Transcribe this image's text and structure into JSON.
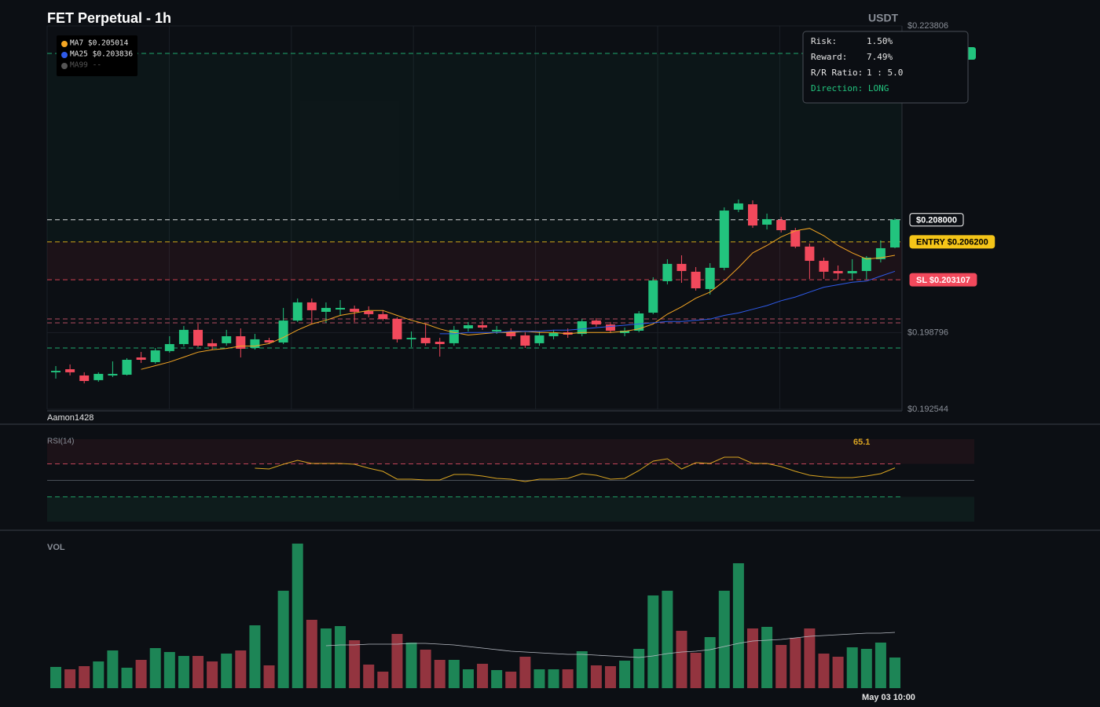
{
  "title": "FET Perpetual - 1h",
  "currency": "USDT",
  "watermark": "Aamon1428",
  "info": {
    "rows": [
      {
        "label": "Risk:",
        "value": "1.50%"
      },
      {
        "label": "Reward:",
        "value": "7.49%"
      },
      {
        "label": "R/R Ratio:",
        "value": "1 : 5.0"
      }
    ],
    "direction": "Direction: LONG"
  },
  "chart_data": [
    {
      "type": "candlestick",
      "up_color": "#22c47e",
      "down_color": "#f2495c",
      "categories": [
        null,
        null,
        null,
        null,
        null,
        null,
        null,
        null,
        null,
        null,
        null,
        null,
        null,
        null,
        null,
        null,
        null,
        null,
        null,
        null,
        null,
        null,
        null,
        null,
        null,
        null,
        null,
        null,
        null,
        null,
        null,
        null,
        null,
        null,
        null,
        null,
        null,
        null,
        null,
        null,
        null,
        null,
        null,
        null,
        null,
        null,
        null,
        null,
        null,
        null,
        null,
        null,
        null,
        null,
        null,
        null,
        null,
        null,
        null,
        "May 03 10:00"
      ],
      "open": [
        0.19556,
        0.19581,
        0.1953,
        0.19492,
        0.1953,
        0.19536,
        0.19677,
        0.19639,
        0.19729,
        0.19786,
        0.19902,
        0.19793,
        0.19793,
        0.1985,
        0.19754,
        0.19818,
        0.19799,
        0.19978,
        0.20126,
        0.20049,
        0.20068,
        0.20074,
        0.20055,
        0.2003,
        0.19991,
        0.19825,
        0.19837,
        0.19805,
        0.19793,
        0.19914,
        0.1994,
        0.19889,
        0.19889,
        0.19857,
        0.19793,
        0.1985,
        0.19882,
        0.19869,
        0.19978,
        0.19946,
        0.19876,
        0.19895,
        0.20042,
        0.20299,
        0.2044,
        0.20376,
        0.20235,
        0.20408,
        0.20882,
        0.20926,
        0.2076,
        0.20798,
        0.20715,
        0.20581,
        0.20465,
        0.20382,
        0.20363,
        0.20382,
        0.20478,
        0.20574
      ],
      "high": [
        0.19607,
        0.1962,
        0.19556,
        0.19556,
        0.19645,
        0.19671,
        0.19722,
        0.19754,
        0.1985,
        0.19934,
        0.19953,
        0.19825,
        0.19902,
        0.19914,
        0.19869,
        0.19837,
        0.20081,
        0.20158,
        0.20158,
        0.20126,
        0.20145,
        0.201,
        0.20094,
        0.20062,
        0.20004,
        0.19889,
        0.19953,
        0.19837,
        0.19934,
        0.19966,
        0.19978,
        0.19934,
        0.19914,
        0.19882,
        0.19889,
        0.19902,
        0.19914,
        0.19991,
        0.19998,
        0.19966,
        0.19921,
        0.20055,
        0.20331,
        0.20478,
        0.2051,
        0.20414,
        0.20446,
        0.20901,
        0.20965,
        0.20958,
        0.2085,
        0.20824,
        0.20734,
        0.20606,
        0.20491,
        0.20427,
        0.20478,
        0.20504,
        0.20632,
        0.20811
      ],
      "low": [
        0.19504,
        0.1953,
        0.19466,
        0.19479,
        0.19517,
        0.1953,
        0.19632,
        0.19626,
        0.19716,
        0.19767,
        0.19761,
        0.19741,
        0.19773,
        0.19677,
        0.19741,
        0.19786,
        0.19786,
        0.19966,
        0.19946,
        0.19959,
        0.20017,
        0.19966,
        0.20004,
        0.19978,
        0.19799,
        0.19761,
        0.19773,
        0.19684,
        0.19773,
        0.19889,
        0.19902,
        0.19869,
        0.19825,
        0.19754,
        0.19773,
        0.19825,
        0.19837,
        0.1985,
        0.19927,
        0.19876,
        0.1985,
        0.19882,
        0.2003,
        0.20273,
        0.20286,
        0.20222,
        0.2019,
        0.20388,
        0.20862,
        0.20734,
        0.20721,
        0.20696,
        0.20568,
        0.20318,
        0.20318,
        0.20312,
        0.20312,
        0.20312,
        0.20452,
        0.20568
      ],
      "close": [
        0.19568,
        0.19556,
        0.19485,
        0.19543,
        0.19543,
        0.19658,
        0.19658,
        0.19735,
        0.19786,
        0.19902,
        0.19773,
        0.19767,
        0.1985,
        0.19748,
        0.19825,
        0.19799,
        0.19978,
        0.20126,
        0.20062,
        0.20081,
        0.20081,
        0.20049,
        0.2003,
        0.19991,
        0.19825,
        0.19837,
        0.19793,
        0.19786,
        0.19902,
        0.1994,
        0.19921,
        0.19902,
        0.1985,
        0.19773,
        0.19857,
        0.19876,
        0.19863,
        0.19972,
        0.19946,
        0.19895,
        0.19895,
        0.20036,
        0.20305,
        0.2044,
        0.20382,
        0.20241,
        0.20408,
        0.20875,
        0.20933,
        0.20753,
        0.20805,
        0.20715,
        0.20581,
        0.20465,
        0.20376,
        0.20363,
        0.20382,
        0.20491,
        0.20568,
        0.208
      ],
      "series": [
        {
          "name": "MA7 $0.205014",
          "color": "#f5a623",
          "values": [
            null,
            null,
            null,
            null,
            null,
            null,
            0.1958,
            0.1961,
            0.1964,
            0.1968,
            0.1972,
            0.1974,
            0.1975,
            0.1977,
            0.1977,
            0.1979,
            0.1984,
            0.199,
            0.1995,
            0.1998,
            0.2002,
            0.2004,
            0.2006,
            0.2006,
            0.2002,
            0.1998,
            0.1995,
            0.1991,
            0.1988,
            0.1986,
            0.1987,
            0.1988,
            0.1988,
            0.1989,
            0.1988,
            0.1988,
            0.1987,
            0.1988,
            0.1988,
            0.1988,
            0.1989,
            0.1991,
            0.1995,
            0.2003,
            0.2009,
            0.2016,
            0.2021,
            0.203,
            0.2041,
            0.2053,
            0.2059,
            0.2066,
            0.2071,
            0.2073,
            0.2067,
            0.2059,
            0.2053,
            0.2048,
            0.2049,
            0.2051
          ]
        },
        {
          "name": "MA25 $0.203836",
          "color": "#2f5bea",
          "values": [
            null,
            null,
            null,
            null,
            null,
            null,
            null,
            null,
            null,
            null,
            null,
            null,
            null,
            null,
            null,
            null,
            null,
            null,
            null,
            null,
            null,
            null,
            null,
            null,
            null,
            null,
            null,
            0.1987,
            0.1987,
            0.1988,
            0.1988,
            0.1988,
            0.1989,
            0.1989,
            0.1989,
            0.199,
            0.199,
            0.1991,
            0.1992,
            0.1993,
            0.1994,
            0.1995,
            0.1996,
            0.1997,
            0.1997,
            0.1998,
            0.1999,
            0.2002,
            0.2004,
            0.2007,
            0.201,
            0.2014,
            0.2017,
            0.2021,
            0.2025,
            0.2027,
            0.2029,
            0.203,
            0.2034,
            0.2038
          ]
        },
        {
          "name": "MA99 --",
          "color": "#555555",
          "values": [
            null,
            null,
            null,
            null,
            null,
            null,
            null,
            null,
            null,
            null,
            null,
            null,
            null,
            null,
            null,
            null,
            null,
            null,
            null,
            null,
            null,
            null,
            null,
            null,
            null,
            null,
            null,
            null,
            null,
            null,
            null,
            null,
            null,
            null,
            null,
            null,
            null,
            null,
            null,
            null,
            null,
            null,
            null,
            null,
            null,
            null,
            null,
            null,
            null,
            null,
            null,
            null,
            null,
            null,
            null,
            null,
            null,
            null,
            null,
            null
          ]
        }
      ],
      "levels": [
        {
          "value": 0.22156,
          "color": "#22c47e"
        },
        {
          "value": 0.208,
          "label": "$0.208000",
          "color": "#ffffff",
          "style": "outline"
        },
        {
          "value": 0.2062,
          "label": "ENTRY $0.206200",
          "color": "#f5c518",
          "style": "filled"
        },
        {
          "value": 0.203107,
          "label": "SL $0.203107",
          "color": "#f2495c",
          "style": "filled"
        },
        {
          "value": 0.19991,
          "color": "#d05a6e"
        },
        {
          "value": 0.19959,
          "color": "#d05a6e"
        },
        {
          "value": 0.19754,
          "color": "#22c47e"
        }
      ],
      "ylim": [
        0.192544,
        0.223806
      ],
      "yticks": [
        {
          "value": 0.223806,
          "label": "$0.223806"
        },
        {
          "value": 0.198796,
          "label": "$0.198796"
        },
        {
          "value": 0.192544,
          "label": "$0.192544"
        }
      ],
      "grid": true
    },
    {
      "type": "line",
      "title": "RSI(14)",
      "ylim": [
        0,
        100
      ],
      "levels": [
        {
          "value": 70,
          "color": "#c2455a",
          "dashed": true
        },
        {
          "value": 50,
          "color": "#4a4f57",
          "dashed": false
        },
        {
          "value": 30,
          "color": "#1f9a63",
          "dashed": true
        }
      ],
      "series": [
        {
          "name": "RSI",
          "color": "#d9a421",
          "values": [
            null,
            null,
            null,
            null,
            null,
            null,
            null,
            null,
            null,
            null,
            null,
            null,
            null,
            null,
            64.8,
            63.8,
            69.5,
            74.3,
            70.5,
            70.5,
            70.5,
            69.5,
            64.8,
            61.0,
            51.4,
            51.4,
            50.5,
            50.5,
            57.1,
            57.1,
            55.2,
            52.4,
            51.4,
            48.6,
            51.4,
            51.4,
            52.4,
            58.1,
            56.2,
            51.4,
            52.4,
            61.9,
            73.3,
            76.2,
            63.8,
            71.4,
            70.5,
            78.1,
            78.1,
            70.5,
            70.5,
            66.7,
            61.0,
            56.2,
            54.3,
            53.3,
            53.3,
            55.2,
            58.1,
            65.1
          ]
        }
      ]
    },
    {
      "type": "bar",
      "title": "VOL",
      "up_color": "#1d8556",
      "down_color": "#93343f",
      "values": [
        27,
        24,
        28,
        34,
        48,
        26,
        36,
        51,
        46,
        41,
        41,
        34,
        44,
        48,
        80,
        29,
        124,
        184,
        87,
        76,
        79,
        61,
        30,
        21,
        69,
        58,
        49,
        36,
        36,
        24,
        31,
        23,
        21,
        40,
        24,
        24,
        24,
        47,
        29,
        28,
        35,
        50,
        118,
        124,
        73,
        45,
        65,
        124,
        159,
        76,
        78,
        55,
        64,
        76,
        44,
        40,
        52,
        50,
        58,
        39
      ],
      "series": [
        {
          "name": "MA",
          "color": "#b8bcc4",
          "values": [
            null,
            null,
            null,
            null,
            null,
            null,
            null,
            null,
            null,
            null,
            null,
            null,
            null,
            null,
            null,
            null,
            null,
            null,
            null,
            54,
            55,
            55,
            56,
            56,
            56,
            57,
            57,
            56,
            55,
            53,
            51,
            49,
            47,
            46,
            45,
            44,
            43,
            43,
            42,
            41,
            40,
            39,
            41,
            44,
            46,
            47,
            49,
            53,
            57,
            60,
            61,
            62,
            64,
            66,
            67,
            68,
            69,
            70,
            70,
            71
          ]
        }
      ]
    }
  ]
}
